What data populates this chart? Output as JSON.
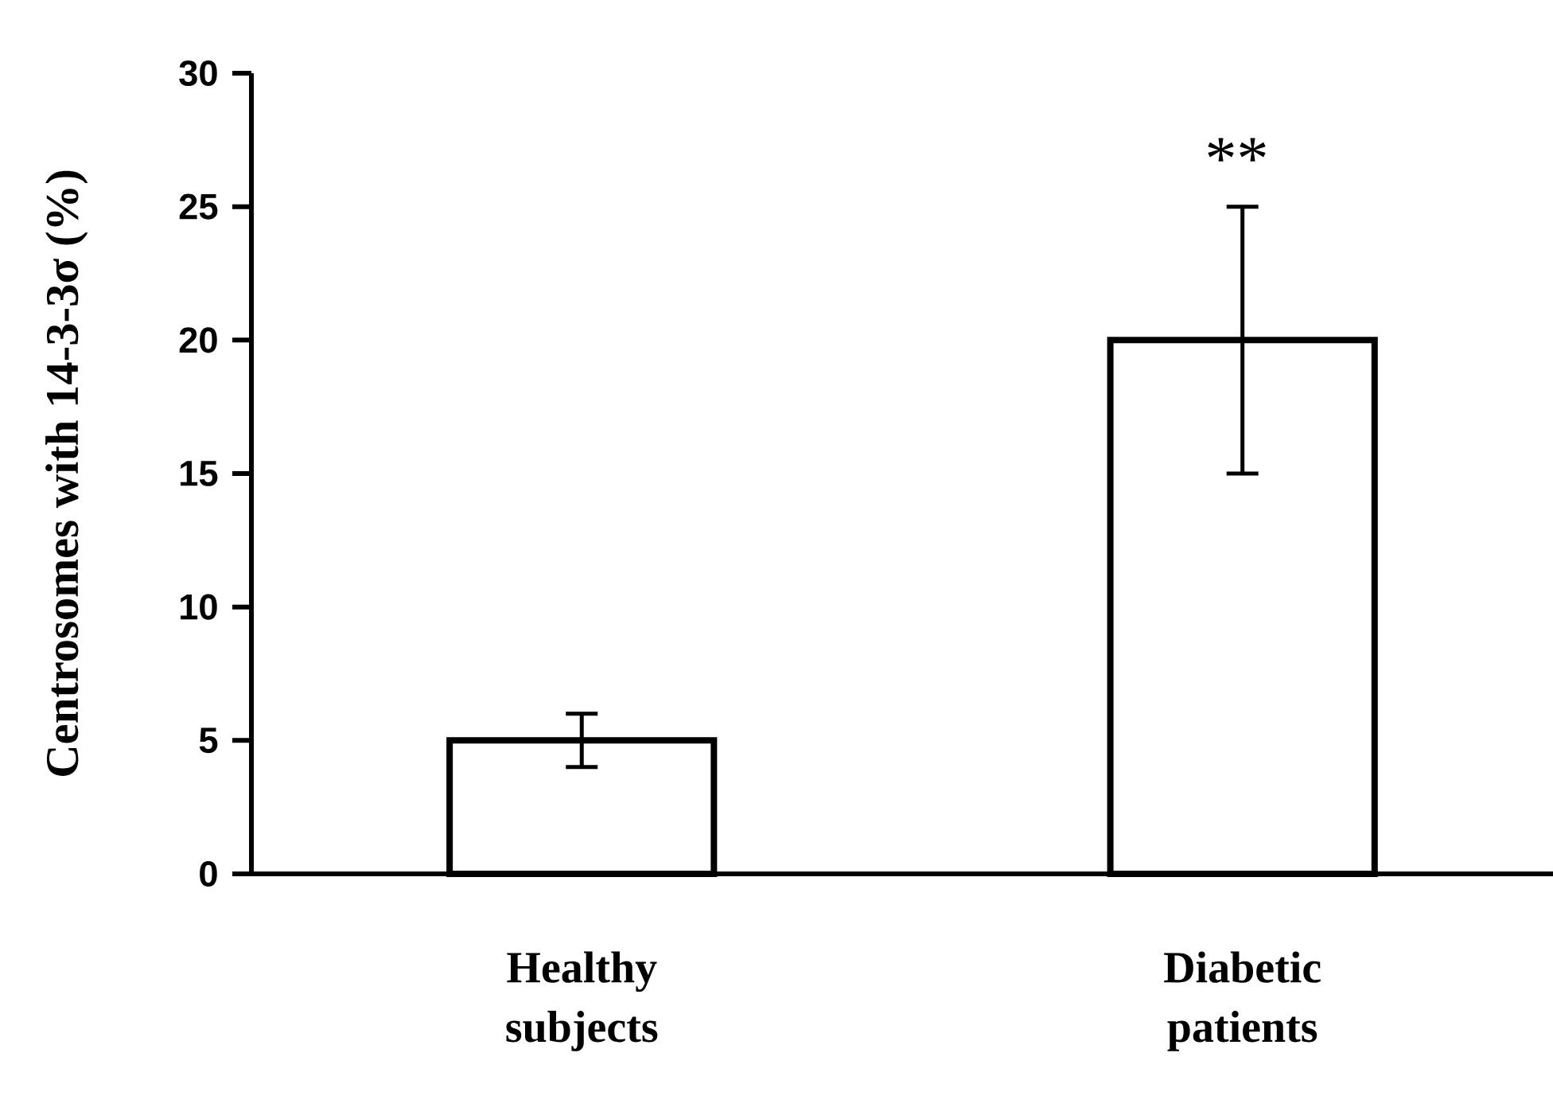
{
  "chart_data": {
    "type": "bar",
    "ylabel": "Centrosomes with 14-3-3σ (%)",
    "categories": [
      "Healthy subjects",
      "Diabetic patients"
    ],
    "values": [
      5,
      20
    ],
    "errors": [
      1,
      5
    ],
    "color": "#ffffff",
    "ylim": [
      0,
      30
    ],
    "yticks": [
      0,
      5,
      10,
      15,
      20,
      25,
      30
    ],
    "grid": false,
    "annotations": [
      "**"
    ]
  }
}
